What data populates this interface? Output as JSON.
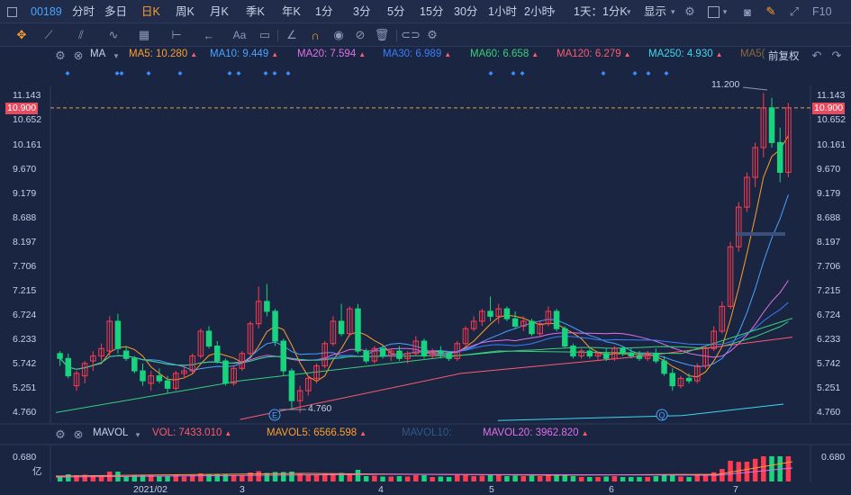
{
  "topbar": {
    "code": "00189",
    "periods": [
      "分时",
      "多日",
      "日K",
      "周K",
      "月K",
      "季K",
      "年K",
      "1分",
      "3分",
      "5分",
      "15分",
      "30分",
      "1小时",
      "2小时",
      "1天：1分K",
      "显示"
    ],
    "active_period": "日K",
    "f10": "F10"
  },
  "toolbar": {
    "icons": [
      "crosshair-icon",
      "line-draw-icon",
      "channel-icon",
      "wave-icon",
      "grid-icon",
      "measure-icon",
      "arrow-icon",
      "text-icon",
      "comment-icon",
      "ruler-icon",
      "magnet-icon",
      "eye-icon",
      "hide-icon",
      "trash-icon",
      "link-icon",
      "settings-icon"
    ],
    "text_label": "Aa"
  },
  "ma_line": {
    "label": "MA",
    "items": [
      {
        "text": "MA5: 10.280",
        "color": "#ff9e2c"
      },
      {
        "text": "MA10: 9.449",
        "color": "#4aa3ff"
      },
      {
        "text": "MA20: 7.594",
        "color": "#e070e8"
      },
      {
        "text": "MA30: 6.989",
        "color": "#3b7dff"
      },
      {
        "text": "MA60: 6.658",
        "color": "#39d17a"
      },
      {
        "text": "MA120: 6.279",
        "color": "#ff5a6e"
      },
      {
        "text": "MA250: 4.930",
        "color": "#3fd8f0"
      },
      {
        "text": "MA5(",
        "color": "#8a6a3a"
      }
    ],
    "right_label": "前复权"
  },
  "price_axis": {
    "ticks": [
      "11.143",
      "10.900",
      "10.652",
      "10.161",
      "9.670",
      "9.179",
      "8.688",
      "8.197",
      "7.706",
      "7.215",
      "6.724",
      "6.233",
      "5.742",
      "5.251",
      "4.760"
    ],
    "current": "10.900",
    "high_label": "11.200",
    "low_label": "4.760",
    "markers": [
      "E",
      "Q"
    ]
  },
  "vol_line": {
    "label": "MAVOL",
    "items": [
      {
        "text": "VOL: 7433.010",
        "color": "#ff5a6e"
      },
      {
        "text": "MAVOL5: 6566.598",
        "color": "#ff9e2c"
      },
      {
        "text": "MAVOL10:",
        "color": "#2f5a8a"
      },
      {
        "text": "MAVOL20: 3962.820",
        "color": "#e070e8"
      }
    ],
    "axis": "0.680",
    "unit": "亿"
  },
  "date_axis": [
    "2021/02",
    "3",
    "4",
    "5",
    "6",
    "7"
  ],
  "colors": {
    "up": "#ff3b52",
    "down": "#19d37e",
    "bg": "#1a2541"
  },
  "chart_data": {
    "type": "candlestick",
    "ylim": [
      4.6,
      11.3
    ],
    "ohlc": [
      [
        5.95,
        6.0,
        5.7,
        5.85
      ],
      [
        5.85,
        5.95,
        5.45,
        5.5
      ],
      [
        5.3,
        5.6,
        5.2,
        5.55
      ],
      [
        5.5,
        5.8,
        5.35,
        5.75
      ],
      [
        5.8,
        6.0,
        5.6,
        5.9
      ],
      [
        5.9,
        6.15,
        5.8,
        6.05
      ],
      [
        6.0,
        6.7,
        5.9,
        6.6
      ],
      [
        6.6,
        6.75,
        5.95,
        6.05
      ],
      [
        6.0,
        6.1,
        5.8,
        5.85
      ],
      [
        5.85,
        5.9,
        5.55,
        5.6
      ],
      [
        5.6,
        5.75,
        5.3,
        5.4
      ],
      [
        5.35,
        5.6,
        5.2,
        5.5
      ],
      [
        5.5,
        5.65,
        5.35,
        5.4
      ],
      [
        5.4,
        5.5,
        5.15,
        5.25
      ],
      [
        5.25,
        5.6,
        5.2,
        5.55
      ],
      [
        5.55,
        5.7,
        5.45,
        5.6
      ],
      [
        5.6,
        5.95,
        5.55,
        5.9
      ],
      [
        5.9,
        6.45,
        5.85,
        6.4
      ],
      [
        6.4,
        6.5,
        6.05,
        6.1
      ],
      [
        6.1,
        6.2,
        5.75,
        5.8
      ],
      [
        5.8,
        5.85,
        5.3,
        5.35
      ],
      [
        5.35,
        5.7,
        5.3,
        5.65
      ],
      [
        5.65,
        6.0,
        5.6,
        5.95
      ],
      [
        5.95,
        6.6,
        5.9,
        6.55
      ],
      [
        6.55,
        7.3,
        6.45,
        7.0
      ],
      [
        7.0,
        7.35,
        6.7,
        6.8
      ],
      [
        6.8,
        6.85,
        6.1,
        6.2
      ],
      [
        6.2,
        6.25,
        5.5,
        5.6
      ],
      [
        5.6,
        5.65,
        4.85,
        5.0
      ],
      [
        5.0,
        5.3,
        4.76,
        5.2
      ],
      [
        5.2,
        5.5,
        5.1,
        5.45
      ],
      [
        5.45,
        5.75,
        5.35,
        5.7
      ],
      [
        5.7,
        6.2,
        5.65,
        6.15
      ],
      [
        6.15,
        6.7,
        6.1,
        6.6
      ],
      [
        6.6,
        6.95,
        6.3,
        6.35
      ],
      [
        6.35,
        6.9,
        6.3,
        6.85
      ],
      [
        6.85,
        6.95,
        5.95,
        6.0
      ],
      [
        6.0,
        6.05,
        5.75,
        5.8
      ],
      [
        5.8,
        6.1,
        5.75,
        6.05
      ],
      [
        6.05,
        6.1,
        5.85,
        5.9
      ],
      [
        5.9,
        6.05,
        5.8,
        6.0
      ],
      [
        6.0,
        6.1,
        5.8,
        5.85
      ],
      [
        5.85,
        6.0,
        5.75,
        5.95
      ],
      [
        5.95,
        6.3,
        5.9,
        6.2
      ],
      [
        6.2,
        6.25,
        5.85,
        5.9
      ],
      [
        5.9,
        6.05,
        5.85,
        6.0
      ],
      [
        6.0,
        6.1,
        5.85,
        5.95
      ],
      [
        5.95,
        6.0,
        5.8,
        5.85
      ],
      [
        5.85,
        6.2,
        5.8,
        6.15
      ],
      [
        6.15,
        6.5,
        6.1,
        6.45
      ],
      [
        6.45,
        6.7,
        6.4,
        6.6
      ],
      [
        6.6,
        6.85,
        6.5,
        6.8
      ],
      [
        6.8,
        7.1,
        6.6,
        6.7
      ],
      [
        6.7,
        6.95,
        6.55,
        6.85
      ],
      [
        6.85,
        6.9,
        6.6,
        6.65
      ],
      [
        6.65,
        6.8,
        6.45,
        6.5
      ],
      [
        6.5,
        6.7,
        6.4,
        6.6
      ],
      [
        6.6,
        6.65,
        6.3,
        6.35
      ],
      [
        6.35,
        6.6,
        6.3,
        6.55
      ],
      [
        6.55,
        6.9,
        6.5,
        6.8
      ],
      [
        6.8,
        6.85,
        6.4,
        6.45
      ],
      [
        6.45,
        6.5,
        6.05,
        6.1
      ],
      [
        6.1,
        6.15,
        5.85,
        5.9
      ],
      [
        5.9,
        6.05,
        5.85,
        6.0
      ],
      [
        6.0,
        6.05,
        5.85,
        5.9
      ],
      [
        5.9,
        6.0,
        5.8,
        5.95
      ],
      [
        5.95,
        6.05,
        5.8,
        5.85
      ],
      [
        5.85,
        6.1,
        5.8,
        6.05
      ],
      [
        6.05,
        6.1,
        5.9,
        5.95
      ],
      [
        5.95,
        6.05,
        5.85,
        5.9
      ],
      [
        5.9,
        6.0,
        5.8,
        5.85
      ],
      [
        5.85,
        6.0,
        5.8,
        5.95
      ],
      [
        5.95,
        6.05,
        5.75,
        5.8
      ],
      [
        5.8,
        5.9,
        5.5,
        5.55
      ],
      [
        5.55,
        5.65,
        5.2,
        5.3
      ],
      [
        5.3,
        5.5,
        5.25,
        5.45
      ],
      [
        5.45,
        5.55,
        5.35,
        5.4
      ],
      [
        5.4,
        5.75,
        5.35,
        5.7
      ],
      [
        5.7,
        6.1,
        5.65,
        6.05
      ],
      [
        6.05,
        6.5,
        6.0,
        6.4
      ],
      [
        6.4,
        7.0,
        6.35,
        6.9
      ],
      [
        6.9,
        8.2,
        6.85,
        8.1
      ],
      [
        8.1,
        9.0,
        8.0,
        8.9
      ],
      [
        8.9,
        9.6,
        8.8,
        9.5
      ],
      [
        9.5,
        10.2,
        9.3,
        10.1
      ],
      [
        10.1,
        11.2,
        9.9,
        10.9
      ],
      [
        10.9,
        11.1,
        10.1,
        10.2
      ],
      [
        10.2,
        10.5,
        9.4,
        9.6
      ],
      [
        9.6,
        11.0,
        9.5,
        10.9
      ]
    ],
    "ma": [
      {
        "name": "MA5",
        "color": "#ff9e2c"
      },
      {
        "name": "MA10",
        "color": "#4aa3ff"
      },
      {
        "name": "MA20",
        "color": "#e070e8"
      },
      {
        "name": "MA30",
        "color": "#3b7dff"
      },
      {
        "name": "MA60",
        "color": "#39d17a"
      },
      {
        "name": "MA120",
        "color": "#ff5a6e"
      },
      {
        "name": "MA250",
        "color": "#3fd8f0"
      }
    ]
  }
}
